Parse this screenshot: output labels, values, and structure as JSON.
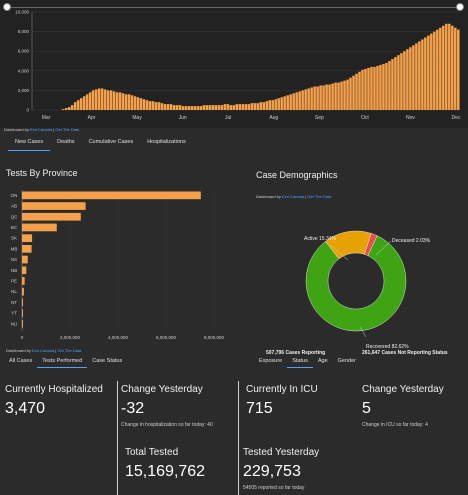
{
  "top_chart": {
    "y_ticks": [
      "10,000",
      "8,000",
      "6,000",
      "4,000",
      "2,000",
      "0"
    ],
    "x_labels": [
      "Mar",
      "Apr",
      "May",
      "Jun",
      "Jul",
      "Aug",
      "Sep",
      "Oct",
      "Nov",
      "Dec"
    ],
    "bar_color": "#f5a04a",
    "bars": [
      0,
      0,
      0,
      0,
      0,
      0,
      0,
      0,
      0,
      0,
      1,
      2,
      3,
      5,
      8,
      10,
      12,
      14,
      16,
      18,
      20,
      21,
      22,
      22,
      21,
      20,
      20,
      19,
      18,
      18,
      17,
      16,
      16,
      15,
      14,
      13,
      12,
      11,
      10,
      9,
      9,
      8,
      8,
      7,
      6,
      6,
      6,
      5,
      5,
      5,
      4,
      4,
      4,
      4,
      4,
      4,
      4,
      5,
      5,
      5,
      5,
      5,
      5,
      5,
      6,
      6,
      5,
      5,
      6,
      6,
      6,
      6,
      6,
      7,
      7,
      7,
      8,
      8,
      9,
      10,
      10,
      11,
      12,
      13,
      14,
      15,
      16,
      17,
      18,
      19,
      20,
      21,
      22,
      23,
      24,
      24,
      25,
      25,
      26,
      26,
      27,
      28,
      28,
      29,
      30,
      31,
      33,
      35,
      37,
      39,
      41,
      42,
      43,
      44,
      44,
      45,
      46,
      47,
      48,
      50,
      52,
      54,
      56,
      58,
      60,
      62,
      64,
      66,
      68,
      70,
      72,
      74,
      76,
      78,
      80,
      82,
      84,
      86,
      88,
      88,
      86,
      84,
      82
    ]
  },
  "top_credit": {
    "prefix": "Dashboard by",
    "link1": "Esri Canada",
    "sep": "|",
    "link2": "Get The Data"
  },
  "top_tabs": [
    "New Cases",
    "Deaths",
    "Cumulative Cases",
    "Hospitalizations"
  ],
  "provinces": {
    "title": "Tests By Province",
    "x_ticks": [
      "0",
      "2,000,000",
      "4,000,000",
      "6,000,000",
      "8,000,000"
    ],
    "xlim": [
      0,
      8000000
    ],
    "bar_color": "#f5a04a",
    "items": [
      {
        "name": "ON",
        "value": 7450000
      },
      {
        "name": "AB",
        "value": 2650000
      },
      {
        "name": "QC",
        "value": 2450000
      },
      {
        "name": "BC",
        "value": 1450000
      },
      {
        "name": "SK",
        "value": 420000
      },
      {
        "name": "MB",
        "value": 400000
      },
      {
        "name": "NS",
        "value": 240000
      },
      {
        "name": "NB",
        "value": 180000
      },
      {
        "name": "PE",
        "value": 110000
      },
      {
        "name": "NL",
        "value": 80000
      },
      {
        "name": "NT",
        "value": 20000
      },
      {
        "name": "YT",
        "value": 10000
      },
      {
        "name": "NU",
        "value": 8000
      }
    ]
  },
  "left_credit": {
    "prefix": "Dashboard by",
    "link1": "Esri Canada",
    "sep": "|",
    "link2": "Get The Data"
  },
  "left_tabs": [
    "All Cases",
    "Tests Performed",
    "Case Status"
  ],
  "demographics": {
    "title": "Case Demographics",
    "credit": {
      "prefix": "Dashboard by",
      "link1": "Esri Canada",
      "sep": "|",
      "link2": "Get The Data"
    },
    "slices": [
      {
        "label": "Recovered 82.62%",
        "value": 82.62,
        "color": "#3fa413"
      },
      {
        "label": "Active 15.34%",
        "value": 15.34,
        "color": "#e5a200"
      },
      {
        "label": "Deceased 2.03%",
        "value": 2.03,
        "color": "#ea4b4b"
      }
    ],
    "reporting": "507,796 Cases Reporting",
    "not_reporting": "261,647 Cases Not Reporting Status"
  },
  "right_tabs": [
    "Exposure",
    "Status",
    "Age",
    "Gender"
  ],
  "stats": {
    "hospitalized": {
      "label": "Currently Hospitalized",
      "value": "3,470"
    },
    "hosp_change": {
      "label": "Change Yesterday",
      "value": "-32",
      "sub": "Change in hospitalization so far today: 40"
    },
    "icu": {
      "label": "Currently In ICU",
      "value": "715"
    },
    "icu_change": {
      "label": "Change Yesterday",
      "value": "5",
      "sub": "Change in ICU so far today: 4"
    },
    "total_tested": {
      "label": "Total Tested",
      "value": "15,169,762"
    },
    "tested_yesterday": {
      "label": "Tested Yesterday",
      "value": "229,753",
      "sub": "54505 reported so far today"
    }
  }
}
